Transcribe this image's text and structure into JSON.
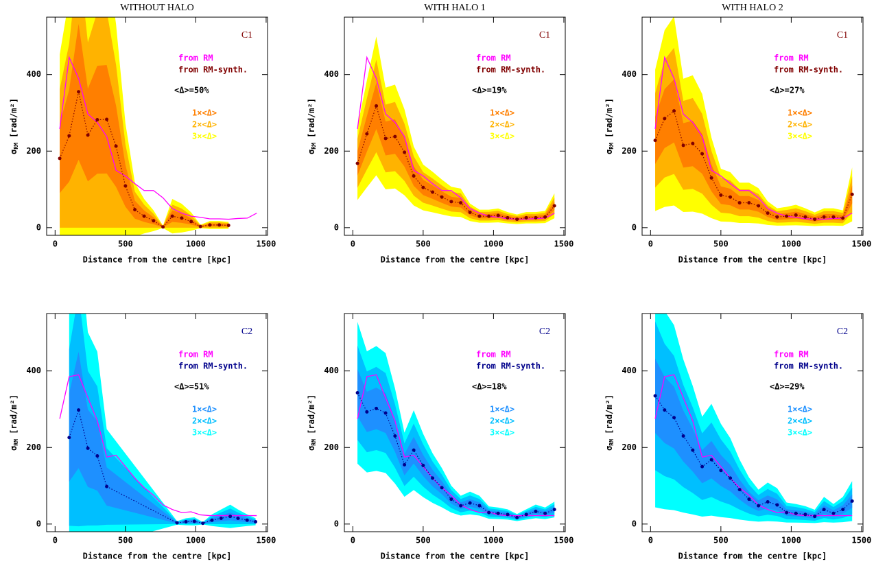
{
  "chart_data": [
    {
      "type": "line",
      "title": "WITHOUT HALO",
      "label": "C1",
      "label_color": "#800000",
      "xlabel": "Distance from the centre [kpc]",
      "ylabel": {
        "symbol": "σ",
        "subscript": "RM",
        "unit": " [rad/m²]"
      },
      "xlim": [
        -60,
        1510
      ],
      "ylim": [
        -20,
        550
      ],
      "xticks": [
        0,
        500,
        1000,
        1500
      ],
      "yticks": [
        0,
        200,
        400
      ],
      "delta": {
        "value": 50,
        "label": "<Δ>=50%"
      },
      "bands": [
        {
          "name": "1×<Δ>",
          "color": "#ff7f00",
          "factor": 1
        },
        {
          "name": "2×<Δ>",
          "color": "#ffb300",
          "factor": 2
        },
        {
          "name": "3×<Δ>",
          "color": "#ffff00",
          "factor": 3
        }
      ],
      "series": [
        {
          "name": "from RM",
          "color": "#ff00ff",
          "x": [
            33,
            100,
            167,
            233,
            300,
            367,
            433,
            500,
            567,
            633,
            700,
            767,
            833,
            900,
            967,
            1033,
            1100,
            1167,
            1233,
            1300,
            1367,
            1433
          ],
          "values": [
            258,
            445,
            390,
            297,
            275,
            238,
            150,
            135,
            115,
            97,
            97,
            78,
            50,
            38,
            30,
            27,
            23,
            23,
            22,
            24,
            25,
            38
          ]
        },
        {
          "name": "from RM-synth.",
          "color": "#800000",
          "x": [
            33,
            100,
            167,
            233,
            300,
            367,
            433,
            500,
            567,
            633,
            700,
            767,
            833,
            900,
            967,
            1033,
            1100,
            1167,
            1233
          ],
          "values": [
            181,
            240,
            355,
            242,
            282,
            283,
            213,
            109,
            47,
            30,
            18,
            2,
            30,
            25,
            16,
            3,
            7,
            7,
            6
          ]
        }
      ]
    },
    {
      "type": "line",
      "title": "WITH HALO 1",
      "label": "C1",
      "label_color": "#800000",
      "xlabel": "Distance from the centre [kpc]",
      "ylabel": {
        "symbol": "σ",
        "subscript": "RM",
        "unit": " [rad/m²]"
      },
      "xlim": [
        -60,
        1510
      ],
      "ylim": [
        -20,
        550
      ],
      "xticks": [
        0,
        500,
        1000,
        1500
      ],
      "yticks": [
        0,
        200,
        400
      ],
      "delta": {
        "value": 19,
        "label": "<Δ>=19%"
      },
      "bands": [
        {
          "name": "1×<Δ>",
          "color": "#ff7f00",
          "factor": 1
        },
        {
          "name": "2×<Δ>",
          "color": "#ffb300",
          "factor": 2
        },
        {
          "name": "3×<Δ>",
          "color": "#ffff00",
          "factor": 3
        }
      ],
      "series": [
        {
          "name": "from RM",
          "color": "#ff00ff",
          "x": [
            33,
            100,
            167,
            233,
            300,
            367,
            433,
            500,
            567,
            633,
            700,
            767,
            833,
            900,
            967,
            1033,
            1100,
            1167,
            1233,
            1300,
            1367,
            1433
          ],
          "values": [
            258,
            445,
            390,
            297,
            275,
            238,
            150,
            135,
            115,
            97,
            97,
            78,
            50,
            38,
            30,
            27,
            23,
            23,
            22,
            24,
            25,
            38
          ]
        },
        {
          "name": "from RM-synth.",
          "color": "#800000",
          "x": [
            33,
            100,
            167,
            233,
            300,
            367,
            433,
            500,
            567,
            633,
            700,
            767,
            833,
            900,
            967,
            1033,
            1100,
            1167,
            1233,
            1300,
            1367,
            1433
          ],
          "values": [
            168,
            245,
            318,
            233,
            238,
            197,
            135,
            105,
            93,
            80,
            68,
            65,
            40,
            30,
            30,
            32,
            26,
            22,
            26,
            26,
            28,
            57
          ]
        }
      ]
    },
    {
      "type": "line",
      "title": "WITH HALO 2",
      "label": "C1",
      "label_color": "#800000",
      "xlabel": "Distance from the centre [kpc]",
      "ylabel": {
        "symbol": "σ",
        "subscript": "RM",
        "unit": " [rad/m²]"
      },
      "xlim": [
        -60,
        1510
      ],
      "ylim": [
        -20,
        550
      ],
      "xticks": [
        0,
        500,
        1000,
        1500
      ],
      "yticks": [
        0,
        200,
        400
      ],
      "delta": {
        "value": 27,
        "label": "<Δ>=27%"
      },
      "bands": [
        {
          "name": "1×<Δ>",
          "color": "#ff7f00",
          "factor": 1
        },
        {
          "name": "2×<Δ>",
          "color": "#ffb300",
          "factor": 2
        },
        {
          "name": "3×<Δ>",
          "color": "#ffff00",
          "factor": 3
        }
      ],
      "series": [
        {
          "name": "from RM",
          "color": "#ff00ff",
          "x": [
            33,
            100,
            167,
            233,
            300,
            367,
            433,
            500,
            567,
            633,
            700,
            767,
            833,
            900,
            967,
            1033,
            1100,
            1167,
            1233,
            1300,
            1367,
            1433
          ],
          "values": [
            258,
            445,
            390,
            297,
            275,
            238,
            150,
            135,
            115,
            97,
            97,
            78,
            50,
            38,
            30,
            27,
            23,
            23,
            22,
            24,
            25,
            38
          ]
        },
        {
          "name": "from RM-synth.",
          "color": "#800000",
          "x": [
            33,
            100,
            167,
            233,
            300,
            367,
            433,
            500,
            567,
            633,
            700,
            767,
            833,
            900,
            967,
            1033,
            1100,
            1167,
            1233,
            1300,
            1367,
            1433
          ],
          "values": [
            228,
            285,
            305,
            215,
            220,
            193,
            130,
            85,
            80,
            65,
            65,
            57,
            38,
            28,
            30,
            33,
            28,
            22,
            28,
            28,
            25,
            87
          ]
        }
      ]
    },
    {
      "type": "line",
      "label": "C2",
      "label_color": "#00008b",
      "xlabel": "Distance from the centre [kpc]",
      "ylabel": {
        "symbol": "σ",
        "subscript": "RM",
        "unit": " [rad/m²]"
      },
      "xlim": [
        -60,
        1510
      ],
      "ylim": [
        -20,
        550
      ],
      "xticks": [
        0,
        500,
        1000,
        1500
      ],
      "yticks": [
        0,
        200,
        400
      ],
      "delta": {
        "value": 51,
        "label": "<Δ>=51%"
      },
      "bands": [
        {
          "name": "1×<Δ>",
          "color": "#1e90ff",
          "factor": 1
        },
        {
          "name": "2×<Δ>",
          "color": "#00bfff",
          "factor": 2
        },
        {
          "name": "3×<Δ>",
          "color": "#00ffff",
          "factor": 3
        }
      ],
      "series": [
        {
          "name": "from RM",
          "color": "#ff00ff",
          "x": [
            33,
            100,
            167,
            233,
            300,
            367,
            433,
            500,
            567,
            633,
            700,
            767,
            833,
            900,
            967,
            1033,
            1100,
            1167,
            1233,
            1300,
            1367,
            1433
          ],
          "values": [
            275,
            385,
            390,
            330,
            270,
            175,
            180,
            150,
            120,
            95,
            75,
            50,
            38,
            30,
            32,
            24,
            22,
            22,
            22,
            22,
            22,
            22
          ]
        },
        {
          "name": "from RM-synth.",
          "color": "#00008b",
          "x": [
            100,
            167,
            233,
            300,
            367,
            867,
            930,
            990,
            1050,
            1115,
            1180,
            1245,
            1300,
            1365,
            1425
          ],
          "values": [
            226,
            298,
            198,
            178,
            98,
            3,
            6,
            7,
            2,
            10,
            15,
            20,
            15,
            10,
            6
          ]
        }
      ]
    },
    {
      "type": "line",
      "label": "C2",
      "label_color": "#00008b",
      "xlabel": "Distance from the centre [kpc]",
      "ylabel": {
        "symbol": "σ",
        "subscript": "RM",
        "unit": " [rad/m²]"
      },
      "xlim": [
        -60,
        1510
      ],
      "ylim": [
        -20,
        550
      ],
      "xticks": [
        0,
        500,
        1000,
        1500
      ],
      "yticks": [
        0,
        200,
        400
      ],
      "delta": {
        "value": 18,
        "label": "<Δ>=18%"
      },
      "bands": [
        {
          "name": "1×<Δ>",
          "color": "#1e90ff",
          "factor": 1
        },
        {
          "name": "2×<Δ>",
          "color": "#00bfff",
          "factor": 2
        },
        {
          "name": "3×<Δ>",
          "color": "#00ffff",
          "factor": 3
        }
      ],
      "series": [
        {
          "name": "from RM",
          "color": "#ff00ff",
          "x": [
            33,
            100,
            167,
            233,
            300,
            367,
            433,
            500,
            567,
            633,
            700,
            767,
            833,
            900,
            967,
            1033,
            1100,
            1167,
            1233,
            1300,
            1367,
            1433
          ],
          "values": [
            275,
            385,
            390,
            330,
            270,
            175,
            180,
            150,
            120,
            95,
            75,
            50,
            38,
            30,
            32,
            24,
            22,
            22,
            22,
            22,
            22,
            22
          ]
        },
        {
          "name": "from RM-synth.",
          "color": "#00008b",
          "x": [
            33,
            100,
            167,
            233,
            300,
            367,
            433,
            500,
            567,
            633,
            700,
            767,
            833,
            900,
            967,
            1033,
            1100,
            1167,
            1233,
            1300,
            1367,
            1433
          ],
          "values": [
            343,
            293,
            302,
            290,
            230,
            155,
            193,
            153,
            120,
            95,
            65,
            48,
            55,
            48,
            30,
            28,
            25,
            17,
            25,
            33,
            28,
            38
          ]
        }
      ]
    },
    {
      "type": "line",
      "label": "C2",
      "label_color": "#00008b",
      "xlabel": "Distance from the centre [kpc]",
      "ylabel": {
        "symbol": "σ",
        "subscript": "RM",
        "unit": " [rad/m²]"
      },
      "xlim": [
        -60,
        1510
      ],
      "ylim": [
        -20,
        550
      ],
      "xticks": [
        0,
        500,
        1000,
        1500
      ],
      "yticks": [
        0,
        200,
        400
      ],
      "delta": {
        "value": 29,
        "label": "<Δ>=29%"
      },
      "bands": [
        {
          "name": "1×<Δ>",
          "color": "#1e90ff",
          "factor": 1
        },
        {
          "name": "2×<Δ>",
          "color": "#00bfff",
          "factor": 2
        },
        {
          "name": "3×<Δ>",
          "color": "#00ffff",
          "factor": 3
        }
      ],
      "series": [
        {
          "name": "from RM",
          "color": "#ff00ff",
          "x": [
            33,
            100,
            167,
            233,
            300,
            367,
            433,
            500,
            567,
            633,
            700,
            767,
            833,
            900,
            967,
            1033,
            1100,
            1167,
            1233,
            1300,
            1367,
            1433
          ],
          "values": [
            275,
            385,
            390,
            330,
            270,
            175,
            180,
            150,
            120,
            95,
            75,
            50,
            38,
            30,
            32,
            24,
            22,
            22,
            22,
            22,
            22,
            22
          ]
        },
        {
          "name": "from RM-synth.",
          "color": "#00008b",
          "x": [
            33,
            100,
            167,
            233,
            300,
            367,
            433,
            500,
            567,
            633,
            700,
            767,
            833,
            900,
            967,
            1033,
            1100,
            1167,
            1233,
            1300,
            1367,
            1433
          ],
          "values": [
            335,
            298,
            278,
            230,
            193,
            150,
            168,
            140,
            120,
            90,
            65,
            48,
            58,
            50,
            30,
            28,
            25,
            20,
            38,
            28,
            38,
            60
          ]
        }
      ]
    }
  ]
}
